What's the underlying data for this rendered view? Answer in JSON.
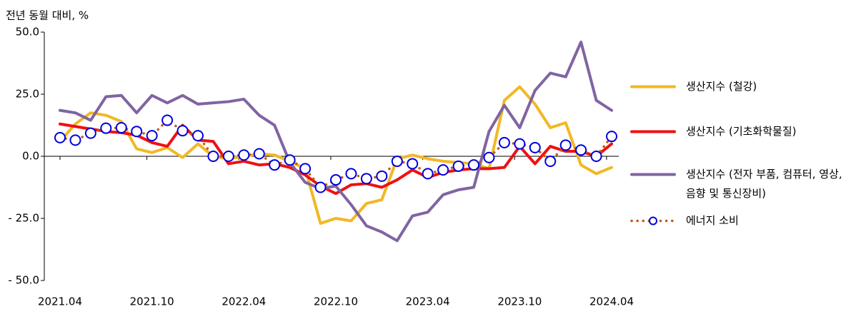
{
  "chart_data": {
    "type": "line",
    "ylabel": "전년 동월 대비, %",
    "categories": [
      "2021.04",
      null,
      null,
      null,
      null,
      null,
      "2021.10",
      null,
      null,
      null,
      null,
      null,
      "2022.04",
      null,
      null,
      null,
      null,
      null,
      "2022.10",
      null,
      null,
      null,
      null,
      null,
      "2023.04",
      null,
      null,
      null,
      null,
      null,
      "2023.10",
      null,
      null,
      null,
      null,
      null,
      "2024.04"
    ],
    "ylim": [
      -50,
      50
    ],
    "yticks": [
      {
        "value": 50,
        "label": "50.0"
      },
      {
        "value": 25,
        "label": "25.0"
      },
      {
        "value": 0,
        "label": "0.0"
      },
      {
        "value": -25,
        "label": "- 25.0"
      },
      {
        "value": -50,
        "label": "- 50.0"
      }
    ],
    "series": [
      {
        "name": "생산지수 (철강)",
        "color": "#f2b824",
        "style": "solid",
        "values": [
          6,
          13,
          17.5,
          16.5,
          14,
          3,
          1.5,
          3.5,
          -0.5,
          5,
          0,
          -1,
          0,
          1,
          0.5,
          -2,
          -5,
          -27,
          -25,
          -26,
          -19,
          -17.5,
          -1,
          0.5,
          -1,
          -2,
          -2.5,
          -3,
          -5,
          22.5,
          28,
          21,
          11.5,
          13.5,
          -3.5,
          -7,
          -4.5
        ]
      },
      {
        "name": "생산지수 (기초화학물질)",
        "color": "#ee1111",
        "style": "solid",
        "values": [
          13,
          12,
          11,
          10,
          9.5,
          8.5,
          5.5,
          4,
          12.5,
          6.5,
          6,
          -3,
          -2,
          -3.5,
          -3,
          -4.5,
          -7.5,
          -12,
          -15,
          -11.5,
          -11,
          -12.5,
          -9.5,
          -5.5,
          -8.5,
          -6.5,
          -5.5,
          -5,
          -5,
          -4.5,
          4,
          -3,
          4,
          2,
          2,
          0,
          5
        ]
      },
      {
        "name": "생산지수 (전자 부품, 컴퓨터, 영상, 음향 및 통신장비)",
        "color": "#8064a2",
        "style": "solid",
        "values": [
          18.5,
          17.5,
          14.5,
          24,
          24.5,
          17.5,
          24.5,
          21.5,
          24.5,
          21,
          21.5,
          22,
          23,
          16.5,
          12.5,
          -2.5,
          -10.5,
          -13,
          -12,
          -19.5,
          -28,
          -30.5,
          -34,
          -24,
          -22.5,
          -15.5,
          -13.5,
          -12.5,
          10,
          20.5,
          11.5,
          26.5,
          33.5,
          32,
          46,
          22.5,
          18.5
        ]
      },
      {
        "name": "에너지 소비",
        "color": "#c55a11",
        "style": "dotted",
        "marker_edge_color": "#0000dd",
        "values": [
          7.5,
          6.5,
          9.3,
          11.3,
          11.5,
          10,
          8.3,
          14.5,
          10.3,
          8.3,
          0,
          0,
          0.5,
          1,
          -3.5,
          -1.5,
          -5,
          -12.5,
          -9.5,
          -7,
          -9,
          -8,
          -2,
          -3,
          -7,
          -5.5,
          -4,
          -3.5,
          -0.5,
          5.5,
          5,
          3.5,
          -2,
          4.5,
          2.5,
          0,
          8
        ]
      }
    ]
  }
}
